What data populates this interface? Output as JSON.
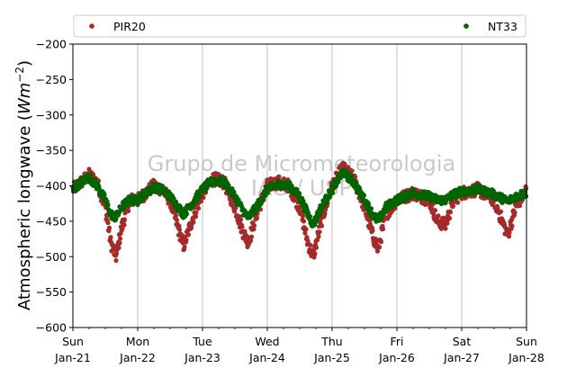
{
  "chart_data": {
    "type": "scatter",
    "ylabel_main": "Atmospheric longwave (",
    "ylabel_unit": "Wm",
    "ylabel_exp": "−2",
    "ylabel_close": ")",
    "ylim": [
      -600,
      -200
    ],
    "yticks": [
      -200,
      -250,
      -300,
      -350,
      -400,
      -450,
      -500,
      -550,
      -600
    ],
    "ytick_labels": [
      "−200",
      "−250",
      "−300",
      "−350",
      "−400",
      "−450",
      "−500",
      "−550",
      "−600"
    ],
    "xlim": [
      "2024-01-21",
      "2024-01-28"
    ],
    "xticks": [
      {
        "day": "Sun",
        "date": "Jan-21"
      },
      {
        "day": "Mon",
        "date": "Jan-22"
      },
      {
        "day": "Tue",
        "date": "Jan-23"
      },
      {
        "day": "Wed",
        "date": "Jan-24"
      },
      {
        "day": "Thu",
        "date": "Jan-25"
      },
      {
        "day": "Fri",
        "date": "Jan-26"
      },
      {
        "day": "Sat",
        "date": "Jan-27"
      },
      {
        "day": "Sun",
        "date": "Jan-28"
      }
    ],
    "grid": "vertical",
    "legend_position": "top",
    "watermark_lines": [
      "Grupo de Micrometeorologia",
      "IAG / USP"
    ],
    "series": [
      {
        "name": "PIR20",
        "color": "#a52a2a",
        "profile": [
          [
            "01-21 00:00",
            -405
          ],
          [
            "01-21 03:00",
            -395
          ],
          [
            "01-21 06:00",
            -385
          ],
          [
            "01-21 09:00",
            -395
          ],
          [
            "01-21 12:00",
            -430
          ],
          [
            "01-21 14:00",
            -480
          ],
          [
            "01-21 16:00",
            -500
          ],
          [
            "01-21 18:00",
            -460
          ],
          [
            "01-21 21:00",
            -420
          ],
          [
            "01-22 00:00",
            -420
          ],
          [
            "01-22 03:00",
            -410
          ],
          [
            "01-22 06:00",
            -400
          ],
          [
            "01-22 09:00",
            -405
          ],
          [
            "01-22 12:00",
            -420
          ],
          [
            "01-22 15:00",
            -460
          ],
          [
            "01-22 17:00",
            -485
          ],
          [
            "01-22 20:00",
            -450
          ],
          [
            "01-23 00:00",
            -410
          ],
          [
            "01-23 04:00",
            -390
          ],
          [
            "01-23 08:00",
            -395
          ],
          [
            "01-23 12:00",
            -430
          ],
          [
            "01-23 15:00",
            -465
          ],
          [
            "01-23 17:00",
            -480
          ],
          [
            "01-23 20:00",
            -440
          ],
          [
            "01-24 00:00",
            -400
          ],
          [
            "01-24 04:00",
            -395
          ],
          [
            "01-24 08:00",
            -400
          ],
          [
            "01-24 12:00",
            -430
          ],
          [
            "01-24 15:00",
            -480
          ],
          [
            "01-24 17:00",
            -500
          ],
          [
            "01-24 20:00",
            -450
          ],
          [
            "01-25 00:00",
            -400
          ],
          [
            "01-25 04:00",
            -375
          ],
          [
            "01-25 08:00",
            -390
          ],
          [
            "01-25 12:00",
            -430
          ],
          [
            "01-25 15:00",
            -470
          ],
          [
            "01-25 17:00",
            -490
          ],
          [
            "01-25 20:00",
            -440
          ],
          [
            "01-26 00:00",
            -420
          ],
          [
            "01-26 06:00",
            -410
          ],
          [
            "01-26 12:00",
            -420
          ],
          [
            "01-26 15:00",
            -450
          ],
          [
            "01-26 18:00",
            -455
          ],
          [
            "01-26 21:00",
            -420
          ],
          [
            "01-27 00:00",
            -410
          ],
          [
            "01-27 06:00",
            -405
          ],
          [
            "01-27 12:00",
            -420
          ],
          [
            "01-27 15:00",
            -450
          ],
          [
            "01-27 17:00",
            -470
          ],
          [
            "01-27 20:00",
            -430
          ],
          [
            "01-28 00:00",
            -405
          ]
        ]
      },
      {
        "name": "NT33",
        "color": "#006400",
        "profile": [
          [
            "01-21 00:00",
            -405
          ],
          [
            "01-21 03:00",
            -395
          ],
          [
            "01-21 06:00",
            -388
          ],
          [
            "01-21 09:00",
            -400
          ],
          [
            "01-21 12:00",
            -420
          ],
          [
            "01-21 14:00",
            -440
          ],
          [
            "01-21 16:00",
            -445
          ],
          [
            "01-21 18:00",
            -430
          ],
          [
            "01-21 21:00",
            -420
          ],
          [
            "01-22 00:00",
            -420
          ],
          [
            "01-22 03:00",
            -410
          ],
          [
            "01-22 06:00",
            -402
          ],
          [
            "01-22 09:00",
            -405
          ],
          [
            "01-22 12:00",
            -415
          ],
          [
            "01-22 15:00",
            -430
          ],
          [
            "01-22 17:00",
            -440
          ],
          [
            "01-22 20:00",
            -425
          ],
          [
            "01-23 00:00",
            -405
          ],
          [
            "01-23 04:00",
            -392
          ],
          [
            "01-23 08:00",
            -395
          ],
          [
            "01-23 12:00",
            -415
          ],
          [
            "01-23 15:00",
            -435
          ],
          [
            "01-23 17:00",
            -445
          ],
          [
            "01-23 20:00",
            -430
          ],
          [
            "01-24 00:00",
            -405
          ],
          [
            "01-24 04:00",
            -398
          ],
          [
            "01-24 08:00",
            -400
          ],
          [
            "01-24 12:00",
            -415
          ],
          [
            "01-24 15:00",
            -440
          ],
          [
            "01-24 17:00",
            -455
          ],
          [
            "01-24 20:00",
            -430
          ],
          [
            "01-25 00:00",
            -405
          ],
          [
            "01-25 04:00",
            -380
          ],
          [
            "01-25 08:00",
            -395
          ],
          [
            "01-25 12:00",
            -420
          ],
          [
            "01-25 15:00",
            -440
          ],
          [
            "01-25 17:00",
            -450
          ],
          [
            "01-25 20:00",
            -430
          ],
          [
            "01-26 00:00",
            -420
          ],
          [
            "01-26 06:00",
            -410
          ],
          [
            "01-26 12:00",
            -415
          ],
          [
            "01-26 15:00",
            -420
          ],
          [
            "01-26 18:00",
            -420
          ],
          [
            "01-26 21:00",
            -412
          ],
          [
            "01-27 00:00",
            -408
          ],
          [
            "01-27 06:00",
            -405
          ],
          [
            "01-27 12:00",
            -412
          ],
          [
            "01-27 15:00",
            -418
          ],
          [
            "01-27 17:00",
            -422
          ],
          [
            "01-27 20:00",
            -415
          ],
          [
            "01-28 00:00",
            -410
          ]
        ]
      }
    ]
  }
}
